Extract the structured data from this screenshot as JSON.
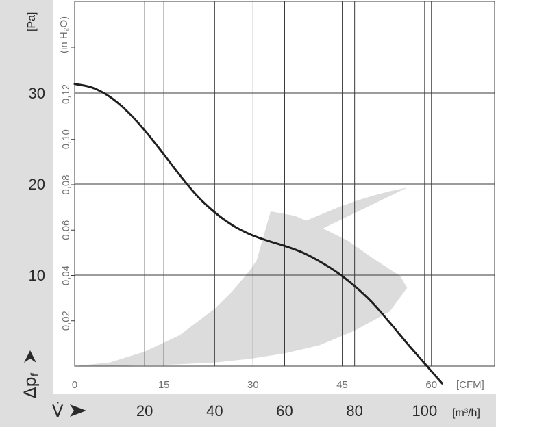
{
  "chart_data": {
    "type": "line",
    "title": "",
    "left_axis_symbol": "Δp",
    "left_axis_subscript": "f",
    "left_axis_unit": "[Pa]",
    "left_axis_ticks": [
      "10",
      "20",
      "30"
    ],
    "left_axis_values": [
      10,
      20,
      30
    ],
    "secondary_y_unit": "(in H₂O)",
    "secondary_y_ticks": [
      "0,02",
      "0,04",
      "0,06",
      "0,08",
      "0,10",
      "0,12"
    ],
    "secondary_y_values": [
      0.02,
      0.04,
      0.06,
      0.08,
      0.1,
      0.12
    ],
    "x_axis_unit": "[CFM]",
    "x_axis_ticks": [
      "0",
      "15",
      "30",
      "45",
      "60"
    ],
    "x_axis_values": [
      0,
      15,
      30,
      45,
      60
    ],
    "bottom_axis_symbol": "V̇",
    "bottom_axis_unit": "[m³/h]",
    "bottom_axis_ticks": [
      "20",
      "40",
      "60",
      "80",
      "100"
    ],
    "bottom_axis_values": [
      20,
      40,
      60,
      80,
      100
    ],
    "xlim_m3h": [
      0,
      120
    ],
    "ylim_pa": [
      0,
      40
    ],
    "grid": true,
    "series": [
      {
        "x_m3h": [
          0,
          5,
          10,
          15,
          20,
          25,
          30,
          35,
          40,
          45,
          50,
          55,
          60,
          65,
          70,
          75,
          80,
          85,
          90,
          95,
          100,
          105
        ],
        "y_pa": [
          31.0,
          30.6,
          29.6,
          28.0,
          25.9,
          23.5,
          21.0,
          18.7,
          16.9,
          15.5,
          14.5,
          13.8,
          13.2,
          12.5,
          11.5,
          10.3,
          8.8,
          7.0,
          4.8,
          2.5,
          0.3,
          -1.9
        ],
        "color": "#1f1f1f"
      }
    ],
    "shaded_region": {
      "upper_x_m3h": [
        0,
        10,
        20,
        30,
        40,
        45,
        50,
        52,
        55,
        60,
        65,
        70,
        75,
        80,
        85,
        90,
        95
      ],
      "upper_y_pa": [
        0,
        0.4,
        1.6,
        3.4,
        6.3,
        8.2,
        10.5,
        11.6,
        13.2,
        14.9,
        15.8,
        16.6,
        17.4,
        18.1,
        18.7,
        19.2,
        19.6
      ],
      "outer_x_m3h": [
        52,
        56,
        63,
        70,
        78,
        85,
        93,
        95
      ],
      "outer_y_pa": [
        11.6,
        17.0,
        16.5,
        15.3,
        13.8,
        11.9,
        9.9,
        8.6
      ],
      "lower_x_m3h": [
        0,
        10,
        20,
        30,
        40,
        50,
        60,
        70,
        80,
        90,
        95
      ],
      "lower_y_pa": [
        0,
        0,
        0.1,
        0.2,
        0.4,
        0.8,
        1.4,
        2.3,
        3.9,
        6.0,
        8.6
      ],
      "color": "#dcdcdc"
    },
    "colors": {
      "side_band": "#dedede",
      "grid": "#3a3a3a",
      "curve": "#1f1f1f"
    }
  }
}
